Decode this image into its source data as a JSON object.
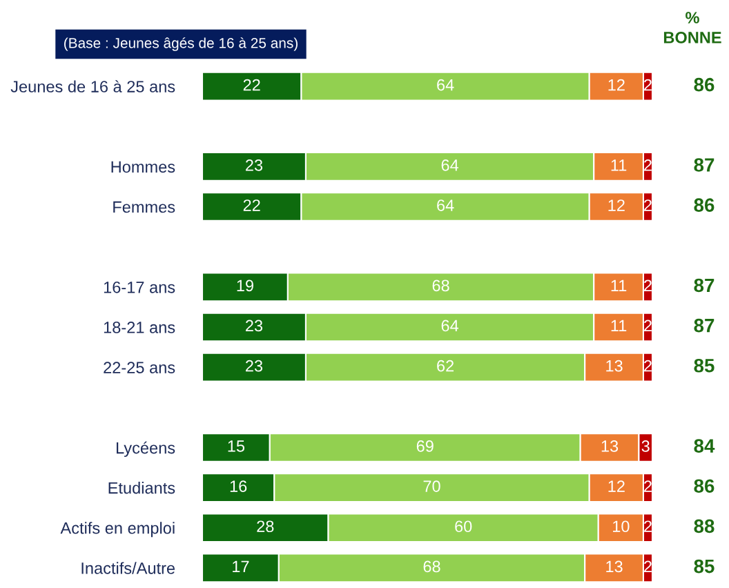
{
  "chart_data": {
    "type": "bar",
    "orientation": "horizontal",
    "stacked": true,
    "data_labels": true,
    "categories": [
      "Jeunes de 16 à 25 ans",
      null,
      "Hommes",
      "Femmes",
      null,
      "16-17 ans",
      "18-21 ans",
      "22-25 ans",
      null,
      "Lycéens",
      "Etudiants",
      "Actifs en emploi",
      "Inactifs/Autre"
    ],
    "series": [
      {
        "color": "#0e6b0e",
        "values": [
          22,
          null,
          23,
          22,
          null,
          19,
          23,
          23,
          null,
          15,
          16,
          28,
          17
        ]
      },
      {
        "color": "#92d050",
        "values": [
          64,
          null,
          64,
          64,
          null,
          68,
          64,
          62,
          null,
          69,
          70,
          60,
          68
        ]
      },
      {
        "color": "#ed7d31",
        "values": [
          12,
          null,
          11,
          12,
          null,
          11,
          11,
          13,
          null,
          13,
          12,
          10,
          13
        ]
      },
      {
        "color": "#c00000",
        "values": [
          2,
          null,
          2,
          2,
          null,
          2,
          2,
          2,
          null,
          3,
          2,
          2,
          2
        ]
      }
    ],
    "legend": false,
    "grid": false,
    "tick_labels": "y",
    "annotations": [
      "(Base : Jeunes âgés de 16 à 25 ans)",
      "%\nBONNE",
      "86",
      "87",
      "86",
      "87",
      "87",
      "85",
      "84",
      "86",
      "88",
      "85"
    ]
  }
}
